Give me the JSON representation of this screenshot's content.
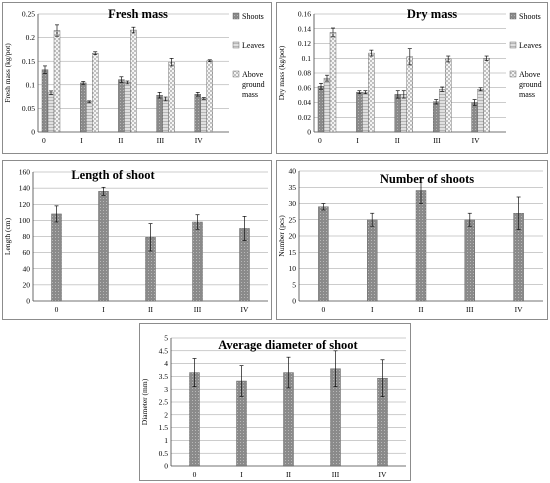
{
  "colors": {
    "shoots": "#8a8a8a",
    "leaves": "#e0e0e0",
    "above": "#f4f4f4",
    "bar": "#8a8a8a",
    "grid": "#9a9a9a"
  },
  "chart_data": [
    {
      "id": "fresh",
      "type": "bar",
      "title": "Fresh mass",
      "ylabel": "Fresh mass (kg/pot)",
      "categories": [
        "0",
        "I",
        "II",
        "III",
        "IV"
      ],
      "ylim": [
        0,
        0.25
      ],
      "yticks": [
        "0",
        "0.05",
        "0.1",
        "0.15",
        "0.2",
        "0.25"
      ],
      "ytick_values": [
        0,
        0.05,
        0.1,
        0.15,
        0.2,
        0.25
      ],
      "series": [
        {
          "name": "Shoots",
          "values": [
            0.132,
            0.104,
            0.111,
            0.078,
            0.08
          ],
          "errors": [
            0.008,
            0.003,
            0.006,
            0.006,
            0.004
          ]
        },
        {
          "name": "Leaves",
          "values": [
            0.083,
            0.064,
            0.105,
            0.07,
            0.071
          ],
          "errors": [
            0.004,
            0.002,
            0.003,
            0.004,
            0.002
          ]
        },
        {
          "name": "Above ground mass",
          "values": [
            0.215,
            0.167,
            0.216,
            0.148,
            0.151
          ],
          "errors": [
            0.012,
            0.003,
            0.006,
            0.008,
            0.002
          ]
        }
      ]
    },
    {
      "id": "dry",
      "type": "bar",
      "title": "Dry mass",
      "ylabel": "Dry mass (kg/pot)",
      "categories": [
        "0",
        "I",
        "II",
        "III",
        "IV"
      ],
      "ylim": [
        0,
        0.16
      ],
      "yticks": [
        "0",
        "0.02",
        "0.04",
        "0.06",
        "0.08",
        "0.1",
        "0.12",
        "0.14",
        "0.16"
      ],
      "ytick_values": [
        0,
        0.02,
        0.04,
        0.06,
        0.08,
        0.1,
        0.12,
        0.14,
        0.16
      ],
      "series": [
        {
          "name": "Shoots",
          "values": [
            0.062,
            0.054,
            0.051,
            0.041,
            0.04
          ],
          "errors": [
            0.004,
            0.002,
            0.005,
            0.003,
            0.004
          ]
        },
        {
          "name": "Leaves",
          "values": [
            0.073,
            0.054,
            0.051,
            0.058,
            0.058
          ],
          "errors": [
            0.004,
            0.002,
            0.005,
            0.003,
            0.002
          ]
        },
        {
          "name": "Above ground mass",
          "values": [
            0.135,
            0.107,
            0.102,
            0.099,
            0.1
          ],
          "errors": [
            0.006,
            0.004,
            0.011,
            0.004,
            0.003
          ]
        }
      ]
    },
    {
      "id": "length",
      "type": "bar",
      "title": "Length of shoot",
      "ylabel": "Length (cm)",
      "categories": [
        "0",
        "I",
        "II",
        "III",
        "IV"
      ],
      "ylim": [
        0,
        160
      ],
      "yticks": [
        "0",
        "20",
        "40",
        "60",
        "80",
        "100",
        "120",
        "140",
        "160"
      ],
      "ytick_values": [
        0,
        20,
        40,
        60,
        80,
        100,
        120,
        140,
        160
      ],
      "series": [
        {
          "name": "Length",
          "values": [
            108,
            136,
            79,
            98,
            90
          ],
          "errors": [
            10,
            5,
            17,
            9,
            15
          ]
        }
      ]
    },
    {
      "id": "number",
      "type": "bar",
      "title": "Number of shoots",
      "ylabel": "Number (pcs)",
      "categories": [
        "0",
        "I",
        "II",
        "III",
        "IV"
      ],
      "ylim": [
        0,
        40
      ],
      "yticks": [
        "0",
        "5",
        "10",
        "15",
        "20",
        "25",
        "30",
        "35",
        "40"
      ],
      "ytick_values": [
        0,
        5,
        10,
        15,
        20,
        25,
        30,
        35,
        40
      ],
      "series": [
        {
          "name": "Number",
          "values": [
            29,
            25,
            34,
            25,
            27
          ],
          "errors": [
            1,
            2,
            4,
            2,
            5
          ]
        }
      ]
    },
    {
      "id": "diameter",
      "type": "bar",
      "title": "Average diameter of shoot",
      "ylabel": "Diameter (mm)",
      "categories": [
        "0",
        "I",
        "II",
        "III",
        "IV"
      ],
      "ylim": [
        0,
        5
      ],
      "yticks": [
        "0",
        "0.5",
        "1",
        "1.5",
        "2",
        "2.5",
        "3",
        "3.5",
        "4",
        "4.5",
        "5"
      ],
      "ytick_values": [
        0,
        0.5,
        1,
        1.5,
        2,
        2.5,
        3,
        3.5,
        4,
        4.5,
        5
      ],
      "series": [
        {
          "name": "Diameter",
          "values": [
            3.65,
            3.32,
            3.65,
            3.8,
            3.43
          ],
          "errors": [
            0.55,
            0.6,
            0.6,
            0.7,
            0.72
          ]
        }
      ]
    }
  ]
}
